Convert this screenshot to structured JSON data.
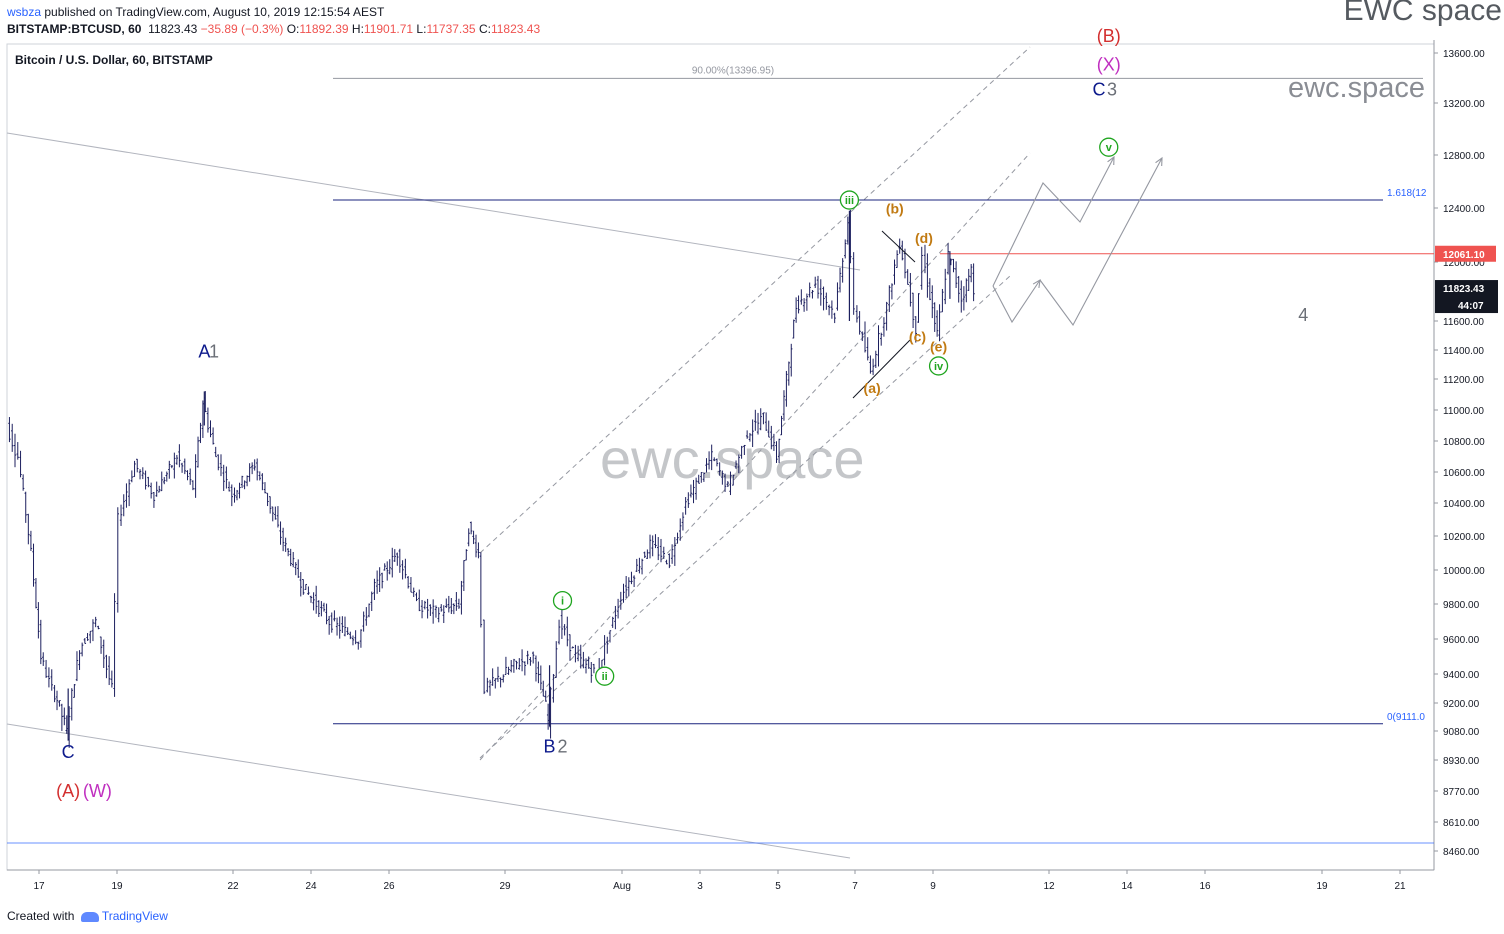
{
  "header": {
    "user": "wsbza",
    "published_text": " published on TradingView.com, August 10, 2019 12:15:54 AEST",
    "symbol": "BITSTAMP:BTCUSD, 60",
    "last": "11823.43",
    "change": "−35.89 (−0.3%)",
    "o_label": "O:",
    "o": "11892.39",
    "h_label": "H:",
    "h": "11901.71",
    "l_label": "L:",
    "l": "11737.35",
    "c_label": "C:",
    "c": "11823.43",
    "brand": "EWC space"
  },
  "legend_title": "Bitcoin / U.S. Dollar, 60, BITSTAMP",
  "watermarks": {
    "center": "ewc.space",
    "top_right": "ewc.space"
  },
  "footer": {
    "created_with": "Created with",
    "logo_text": "TradingView"
  },
  "colors": {
    "bar": "#1c1f5e",
    "grid": "#f0f3fa",
    "fib": "#1a237e",
    "red_level": "#ef5350",
    "wave_blue": "#0d1a8c",
    "wave_gray": "#6b6f77",
    "wave_red": "#d32f2f",
    "wave_magenta": "#c02fc0",
    "wave_green": "#1fa51f",
    "wave_orange": "#c17a12",
    "price_box": "#131722",
    "price_box_red": "#ef5350"
  },
  "chart_data": {
    "type": "candlestick",
    "title": "Bitcoin / U.S. Dollar, 60, BITSTAMP",
    "xlabel": "",
    "ylabel": "",
    "x_ticks": [
      "17",
      "19",
      "22",
      "24",
      "26",
      "29",
      "Aug",
      "3",
      "5",
      "7",
      "9",
      "12",
      "14",
      "16",
      "19",
      "21"
    ],
    "y_ticks": [
      "13600.00",
      "13200.00",
      "12800.00",
      "12400.00",
      "12000.00",
      "11600.00",
      "11400.00",
      "11200.00",
      "11000.00",
      "10800.00",
      "10600.00",
      "10400.00",
      "10200.00",
      "10000.00",
      "9800.00",
      "9600.00",
      "9400.00",
      "9200.00",
      "9080.00",
      "8930.00",
      "8770.00",
      "8610.00",
      "8460.00"
    ],
    "price_path": [
      {
        "d": "Jul 16 00:00",
        "p": 11050
      },
      {
        "d": "Jul 16 12:00",
        "p": 10700
      },
      {
        "d": "Jul 16 20:00",
        "p": 10100
      },
      {
        "d": "Jul 17 02:00",
        "p": 9500
      },
      {
        "d": "Jul 17 09:00",
        "p": 9300
      },
      {
        "d": "Jul 17 18:00",
        "p": 9070
      },
      {
        "d": "Jul 18 02:00",
        "p": 9550
      },
      {
        "d": "Jul 18 12:00",
        "p": 9700
      },
      {
        "d": "Jul 18 22:00",
        "p": 9300
      },
      {
        "d": "Jul 19 02:00",
        "p": 10300
      },
      {
        "d": "Jul 19 12:00",
        "p": 10650
      },
      {
        "d": "Jul 20 00:00",
        "p": 10450
      },
      {
        "d": "Jul 20 14:00",
        "p": 10700
      },
      {
        "d": "Jul 21 00:00",
        "p": 10500
      },
      {
        "d": "Jul 21 06:00",
        "p": 11050
      },
      {
        "d": "Jul 21 14:00",
        "p": 10700
      },
      {
        "d": "Jul 22 00:00",
        "p": 10450
      },
      {
        "d": "Jul 22 14:00",
        "p": 10650
      },
      {
        "d": "Jul 23 06:00",
        "p": 10200
      },
      {
        "d": "Jul 23 20:00",
        "p": 9900
      },
      {
        "d": "Jul 24 12:00",
        "p": 9700
      },
      {
        "d": "Jul 25 06:00",
        "p": 9600
      },
      {
        "d": "Jul 25 16:00",
        "p": 9900
      },
      {
        "d": "Jul 26 06:00",
        "p": 10100
      },
      {
        "d": "Jul 26 18:00",
        "p": 9800
      },
      {
        "d": "Jul 27 06:00",
        "p": 9750
      },
      {
        "d": "Jul 27 20:00",
        "p": 9800
      },
      {
        "d": "Jul 28 02:00",
        "p": 10250
      },
      {
        "d": "Jul 28 08:00",
        "p": 10100
      },
      {
        "d": "Jul 28 12:00",
        "p": 9300
      },
      {
        "d": "Jul 29 06:00",
        "p": 9450
      },
      {
        "d": "Jul 29 18:00",
        "p": 9500
      },
      {
        "d": "Jul 30 03:00",
        "p": 9120
      },
      {
        "d": "Jul 30 10:00",
        "p": 9700
      },
      {
        "d": "Jul 30 20:00",
        "p": 9500
      },
      {
        "d": "Jul 31 09:00",
        "p": 9400
      },
      {
        "d": "Aug 1 00:00",
        "p": 9850
      },
      {
        "d": "Aug 1 18:00",
        "p": 10150
      },
      {
        "d": "Aug 2 06:00",
        "p": 10050
      },
      {
        "d": "Aug 2 16:00",
        "p": 10400
      },
      {
        "d": "Aug 3 08:00",
        "p": 10700
      },
      {
        "d": "Aug 3 18:00",
        "p": 10500
      },
      {
        "d": "Aug 4 06:00",
        "p": 10850
      },
      {
        "d": "Aug 4 16:00",
        "p": 10950
      },
      {
        "d": "Aug 5 00:00",
        "p": 10700
      },
      {
        "d": "Aug 5 06:00",
        "p": 11200
      },
      {
        "d": "Aug 5 12:00",
        "p": 11700
      },
      {
        "d": "Aug 6 00:00",
        "p": 11850
      },
      {
        "d": "Aug 6 12:00",
        "p": 11650
      },
      {
        "d": "Aug 6 20:00",
        "p": 12300
      },
      {
        "d": "Aug 7 00:00",
        "p": 11700
      },
      {
        "d": "Aug 7 10:00",
        "p": 11250
      },
      {
        "d": "Aug 7 20:00",
        "p": 11700
      },
      {
        "d": "Aug 8 04:00",
        "p": 12150
      },
      {
        "d": "Aug 8 14:00",
        "p": 11550
      },
      {
        "d": "Aug 8 18:00",
        "p": 12050
      },
      {
        "d": "Aug 9 03:00",
        "p": 11500
      },
      {
        "d": "Aug 9 10:00",
        "p": 12050
      },
      {
        "d": "Aug 9 18:00",
        "p": 11750
      },
      {
        "d": "Aug 10 00:00",
        "p": 11950
      },
      {
        "d": "Aug 10 02:00",
        "p": 11823
      }
    ],
    "last_price": 11823.43,
    "countdown": "44:07",
    "resistance_level": 12061.1,
    "fib_levels": [
      {
        "label": "1.618(12",
        "price": 12460
      },
      {
        "label": "0(9111.0",
        "price": 9111
      },
      {
        "label": "90.00%(13396.95)",
        "price": 13396.95
      }
    ],
    "wave_labels": [
      {
        "text": "A",
        "color": "wave_blue",
        "d": "Jul 21 06:00",
        "p": 11350
      },
      {
        "text": "1",
        "color": "wave_gray",
        "d": "Jul 21 12:00",
        "p": 11350
      },
      {
        "text": "C",
        "color": "wave_blue",
        "d": "Jul 17 18:00",
        "p": 8940
      },
      {
        "text": "(A)",
        "color": "wave_red",
        "d": "Jul 17 18:00",
        "p": 8740
      },
      {
        "text": "(W)",
        "color": "wave_magenta",
        "d": "Jul 18 12:00",
        "p": 8740
      },
      {
        "text": "B",
        "color": "wave_blue",
        "d": "Jul 30 03:00",
        "p": 8970
      },
      {
        "text": "2",
        "color": "wave_gray",
        "d": "Jul 30 11:00",
        "p": 8970
      },
      {
        "text": "(B)",
        "color": "wave_red",
        "d": "Aug 13 12:00",
        "p": 13690
      },
      {
        "text": "(X)",
        "color": "wave_magenta",
        "d": "Aug 13 12:00",
        "p": 13460
      },
      {
        "text": "C",
        "color": "wave_blue",
        "d": "Aug 13 06:00",
        "p": 13260
      },
      {
        "text": "3",
        "color": "wave_gray",
        "d": "Aug 13 14:00",
        "p": 13260
      },
      {
        "text": "4",
        "color": "wave_gray",
        "d": "Aug 18 12:00",
        "p": 11600
      }
    ],
    "circle_labels": [
      {
        "text": "i",
        "d": "Jul 30 11:00",
        "p": 9820
      },
      {
        "text": "ii",
        "d": "Jul 31 13:00",
        "p": 9385
      },
      {
        "text": "iii",
        "d": "Aug 6 20:00",
        "p": 12460
      },
      {
        "text": "iv",
        "d": "Aug 9 03:00",
        "p": 11290
      },
      {
        "text": "v",
        "d": "Aug 13 12:00",
        "p": 12860
      }
    ],
    "sub_labels": [
      {
        "text": "(a)",
        "d": "Aug 7 10:00",
        "p": 11110
      },
      {
        "text": "(b)",
        "d": "Aug 8 00:00",
        "p": 12360
      },
      {
        "text": "(c)",
        "d": "Aug 8 14:00",
        "p": 11460
      },
      {
        "text": "(d)",
        "d": "Aug 8 18:00",
        "p": 12140
      },
      {
        "text": "(e)",
        "d": "Aug 9 03:00",
        "p": 11390
      }
    ]
  }
}
